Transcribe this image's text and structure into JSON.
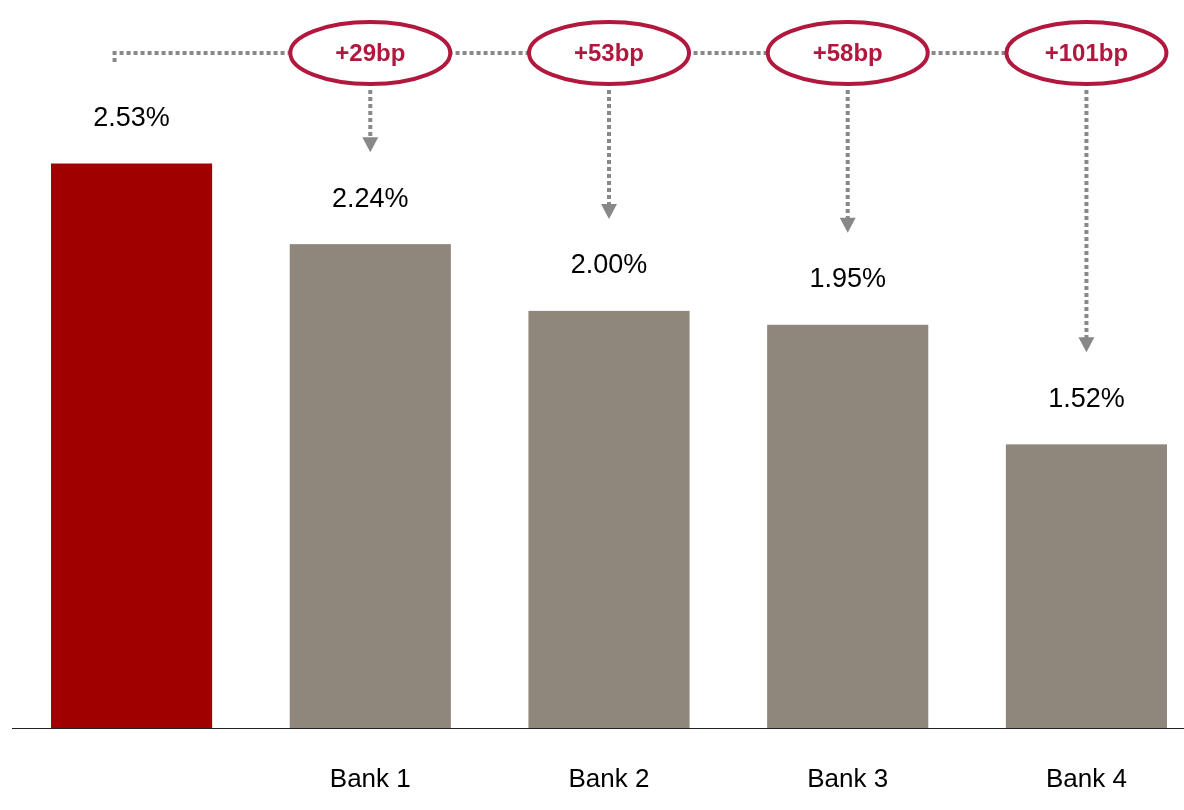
{
  "chart_data": {
    "type": "bar",
    "categories": [
      null,
      "Bank 1",
      "Bank 2",
      "Bank 3",
      "Bank 4"
    ],
    "values": [
      2.53,
      2.24,
      2.0,
      1.95,
      1.52
    ],
    "colors": [
      "#a00000",
      "#8f867c",
      "#8f867c",
      "#8f867c",
      "#8f867c"
    ],
    "value_labels": [
      "2.53%",
      "2.24%",
      "2.00%",
      "1.95%",
      "1.52%"
    ],
    "ylim": [
      0.5,
      3.1
    ],
    "tick_labels": "x",
    "annotations": [
      "+29bp",
      "+53bp",
      "+58bp",
      "+101bp"
    ]
  }
}
